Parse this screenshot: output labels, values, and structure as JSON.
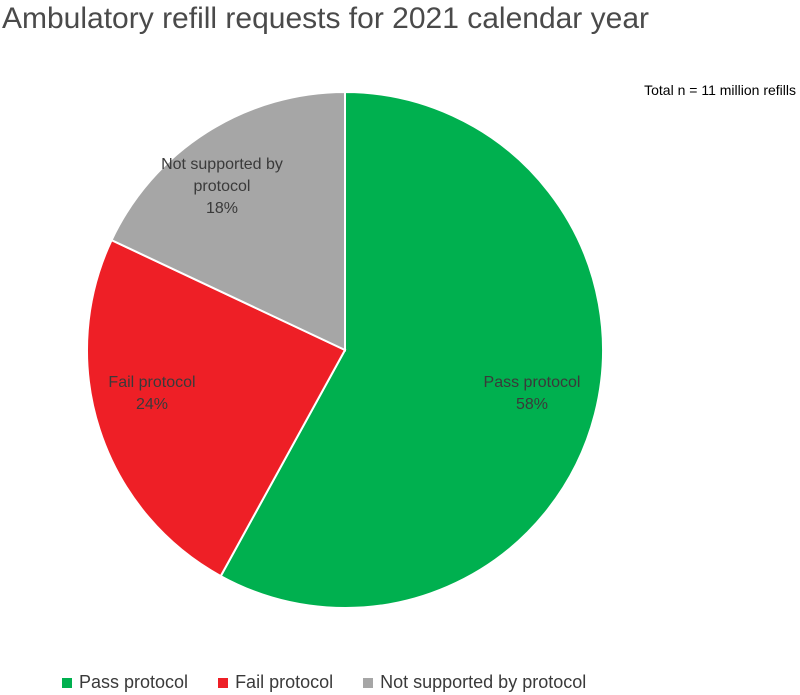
{
  "chart_data": {
    "type": "pie",
    "title": "Ambulatory refill requests for 2021 calendar year",
    "annotation": "Total n = 11 million refills",
    "slices": [
      {
        "label_lines": [
          "Pass protocol"
        ],
        "percent_label": "58%",
        "value": 58,
        "color": "#00b04f",
        "legend": "Pass protocol"
      },
      {
        "label_lines": [
          "Fail protocol"
        ],
        "percent_label": "24%",
        "value": 24,
        "color": "#ee1f26",
        "legend": "Fail protocol"
      },
      {
        "label_lines": [
          "Not supported by",
          "protocol"
        ],
        "percent_label": "18%",
        "value": 18,
        "color": "#a6a6a6",
        "legend": "Not supported by protocol"
      }
    ],
    "legend_position": "bottom"
  }
}
